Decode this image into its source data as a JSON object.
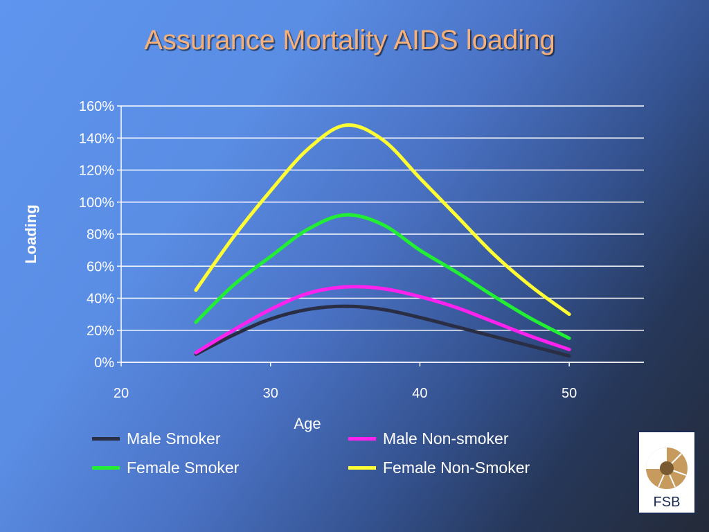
{
  "slide": {
    "title": "Assurance Mortality AIDS loading"
  },
  "logo": {
    "text": "FSB"
  },
  "colors": {
    "axis_text": "#ffffff",
    "grid": "#ffffff",
    "title": "#f6b07a"
  },
  "chart_data": {
    "type": "line",
    "title": "",
    "xlabel": "Age",
    "ylabel": "Loading",
    "x": [
      25,
      27.5,
      30,
      32.5,
      35,
      37.5,
      40,
      42.5,
      45,
      47.5,
      50
    ],
    "xlim": [
      20,
      55
    ],
    "x_ticks": [
      20,
      30,
      40,
      50
    ],
    "ylim": [
      0,
      160
    ],
    "y_ticks": [
      "0%",
      "20%",
      "40%",
      "60%",
      "80%",
      "100%",
      "120%",
      "140%",
      "160%"
    ],
    "grid": true,
    "legend_position": "bottom",
    "series": [
      {
        "name": "Male Smoker",
        "color": "#2a2e45",
        "values": [
          5,
          17,
          27,
          33,
          35,
          33,
          28,
          22,
          16,
          10,
          4
        ]
      },
      {
        "name": "Male Non-smoker",
        "color": "#ff22ee",
        "values": [
          6,
          20,
          33,
          43,
          47,
          46,
          41,
          34,
          25,
          16,
          8
        ]
      },
      {
        "name": "Female Smoker",
        "color": "#22ee33",
        "values": [
          25,
          48,
          66,
          83,
          92,
          86,
          70,
          56,
          41,
          27,
          15
        ]
      },
      {
        "name": "Female Non-Smoker",
        "color": "#ffff33",
        "values": [
          45,
          78,
          107,
          133,
          148,
          139,
          115,
          91,
          67,
          47,
          30
        ]
      }
    ]
  }
}
